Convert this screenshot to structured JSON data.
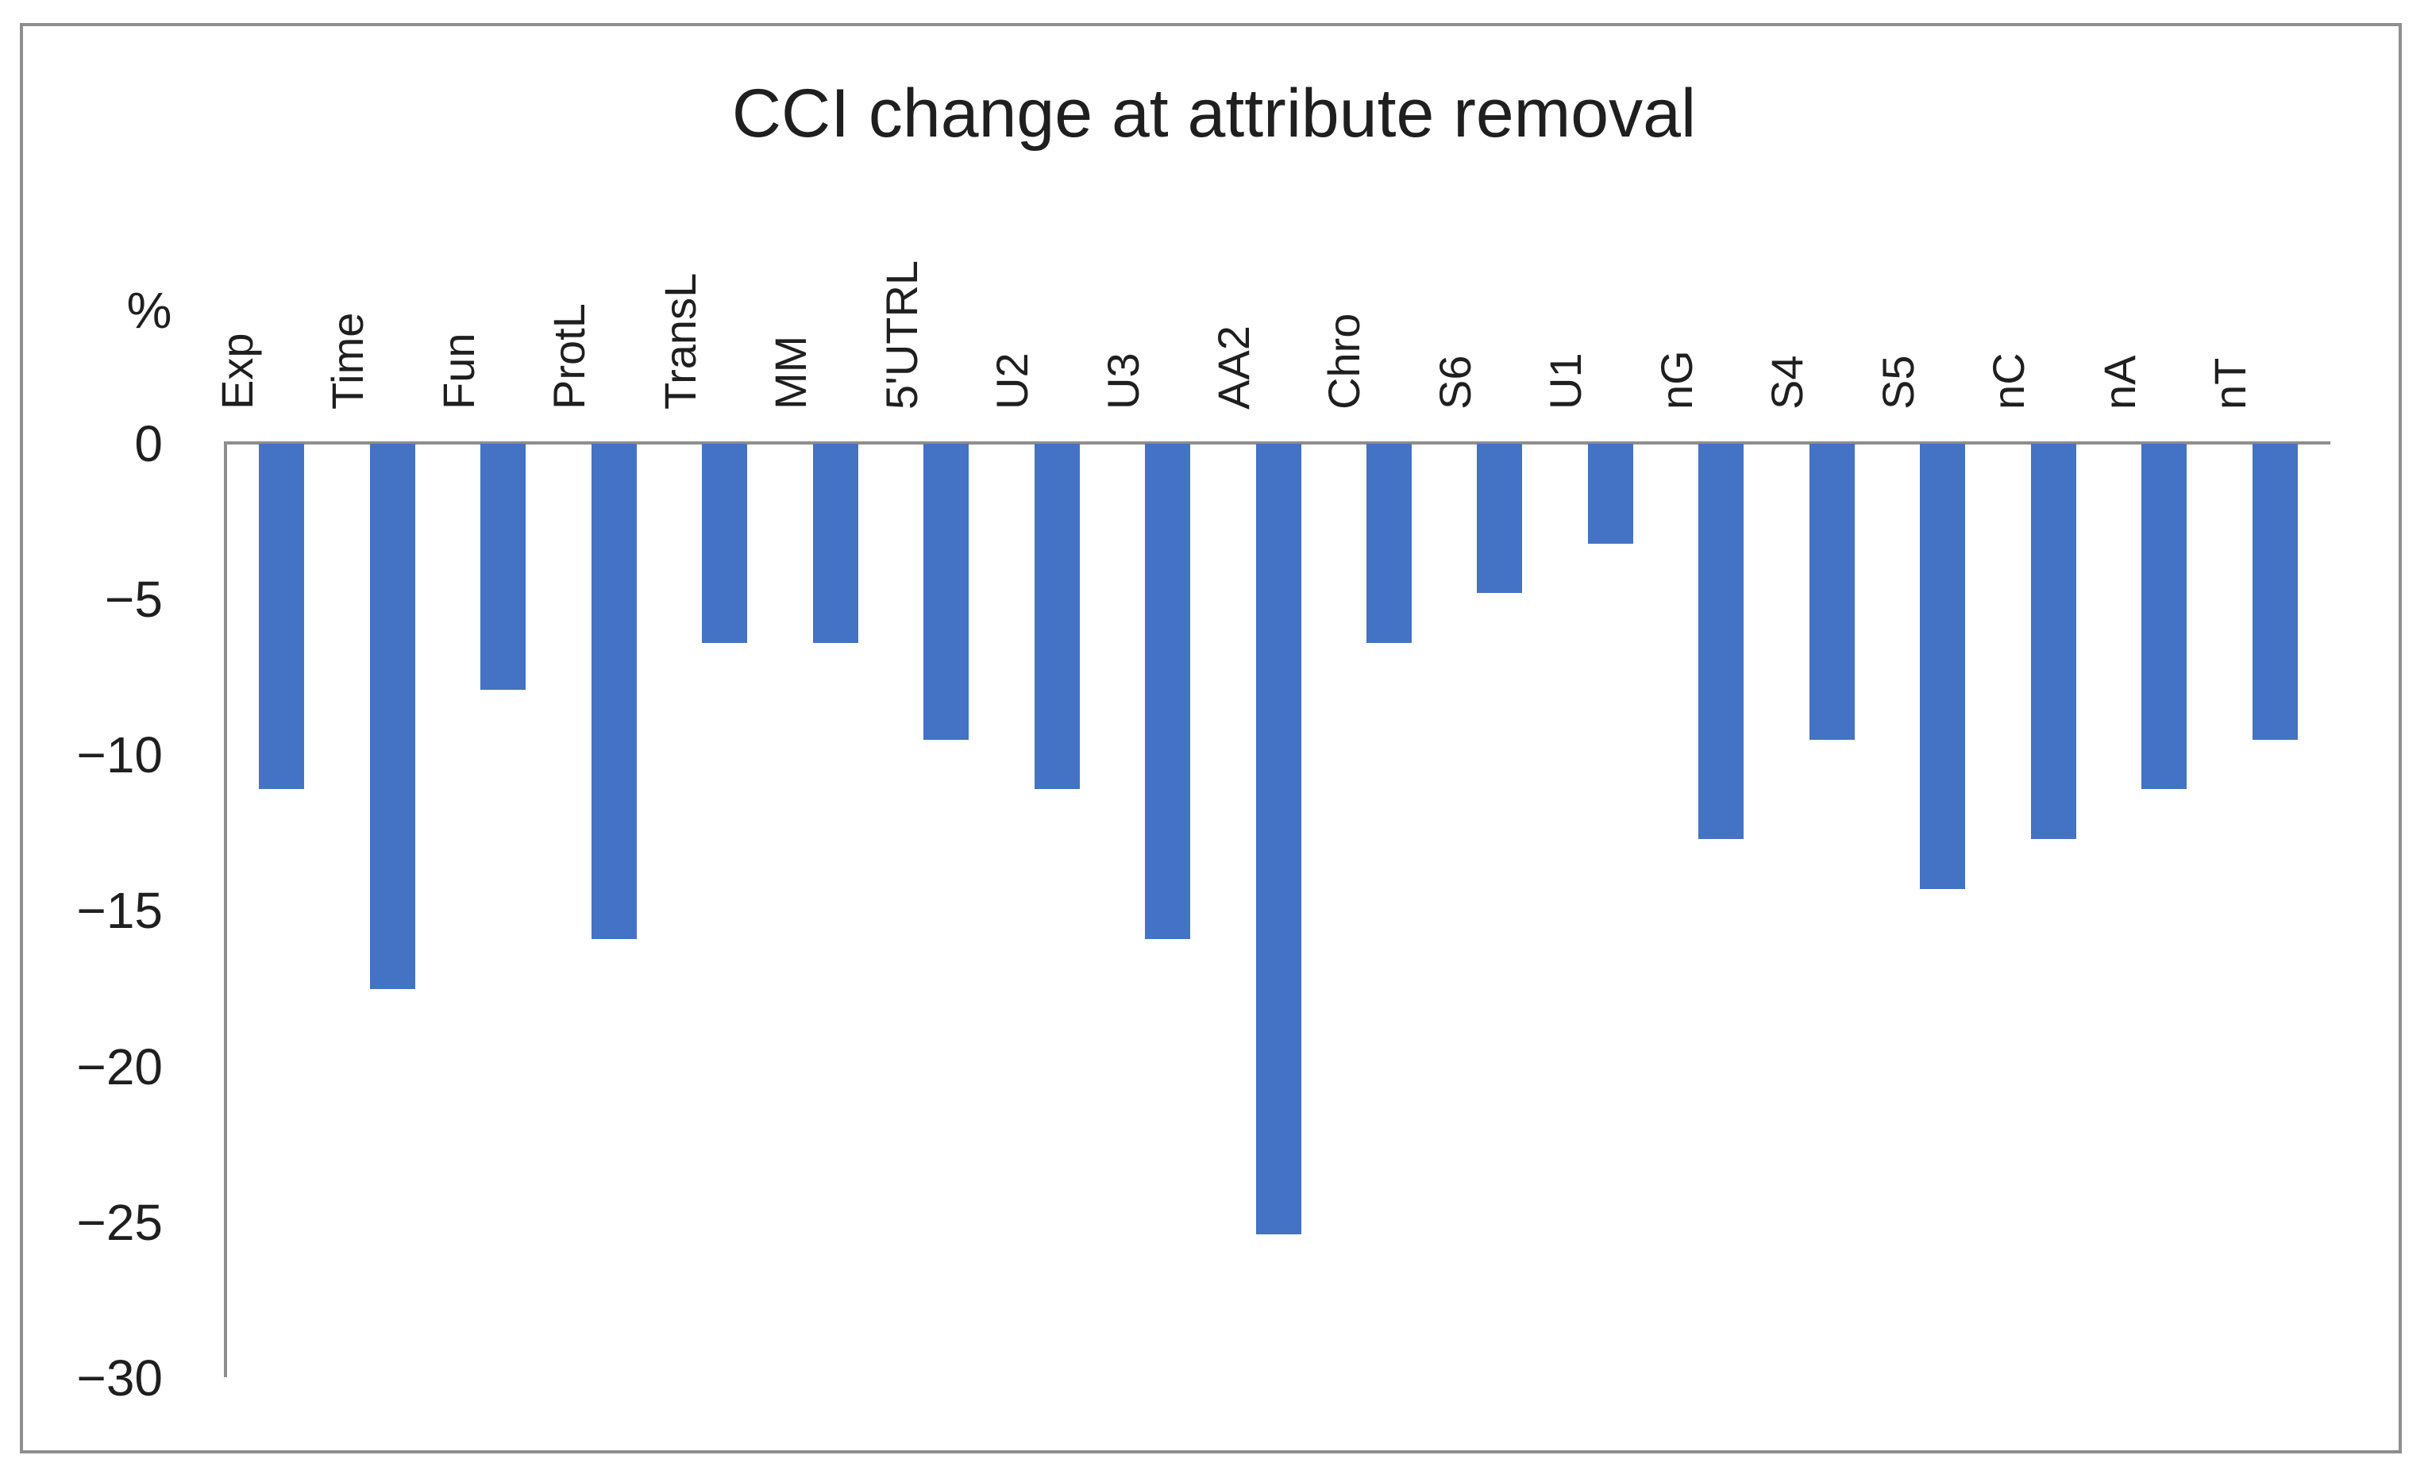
{
  "chart_data": {
    "type": "bar",
    "title": "CCI change at attribute removal",
    "unit_label": "%",
    "categories": [
      "Exp",
      "Time",
      "Fun",
      "ProtL",
      "TransL",
      "MM",
      "5'UTRL",
      "U2",
      "U3",
      "AA2",
      "Chro",
      "S6",
      "U1",
      "nG",
      "S4",
      "S5",
      "nC",
      "nA",
      "nT"
    ],
    "values": [
      -11.1,
      -17.5,
      -7.9,
      -15.9,
      -6.4,
      -6.4,
      -9.5,
      -11.1,
      -15.9,
      -25.4,
      -6.4,
      -4.8,
      -3.2,
      -12.7,
      -9.5,
      -14.3,
      -12.7,
      -11.1,
      -9.5
    ],
    "ylim": [
      -30,
      0
    ],
    "yticks": [
      0,
      -5,
      -10,
      -15,
      -20,
      -25,
      -30
    ],
    "ytick_labels": [
      "0",
      "−5",
      "−10",
      "−15",
      "−20",
      "−25",
      "−30"
    ],
    "xlabel": "",
    "ylabel": "%",
    "grid": false,
    "legend": "none",
    "bar_color": "#4472C4",
    "axis_color": "#8E8E8E",
    "frame_color": "#8E8E8E",
    "text_color": "#1F1F1F",
    "background": "#FFFFFF"
  }
}
